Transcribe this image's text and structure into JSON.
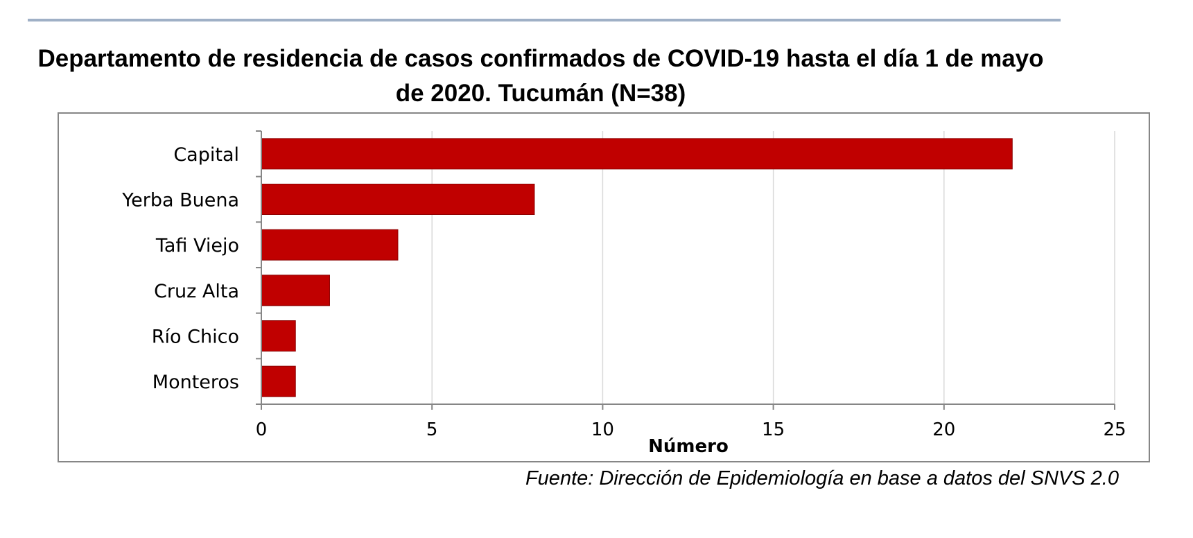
{
  "chart_data": {
    "type": "bar",
    "orientation": "horizontal",
    "title": "Departamento de residencia de casos confirmados de COVID-19 hasta el día 1 de mayo de 2020. Tucumán (N=38)",
    "categories": [
      "Capital",
      "Yerba Buena",
      "Tafi Viejo",
      "Cruz Alta",
      "Río Chico",
      "Monteros"
    ],
    "values": [
      22,
      8,
      4,
      2,
      1,
      1
    ],
    "xlabel": "Número",
    "ylabel": "",
    "xlim": [
      0,
      25
    ],
    "x_ticks": [
      0,
      5,
      10,
      15,
      20,
      25
    ],
    "x_tick_labels": [
      "0",
      "5",
      "10",
      "15",
      "20",
      "25"
    ],
    "grid": "vertical",
    "legend": "none",
    "bar_color": "#c00000",
    "grid_color": "#d9d9d9",
    "axis_color": "#868686"
  },
  "footer": {
    "source": "Fuente: Dirección de Epidemiología en base a datos del SNVS 2.0"
  }
}
